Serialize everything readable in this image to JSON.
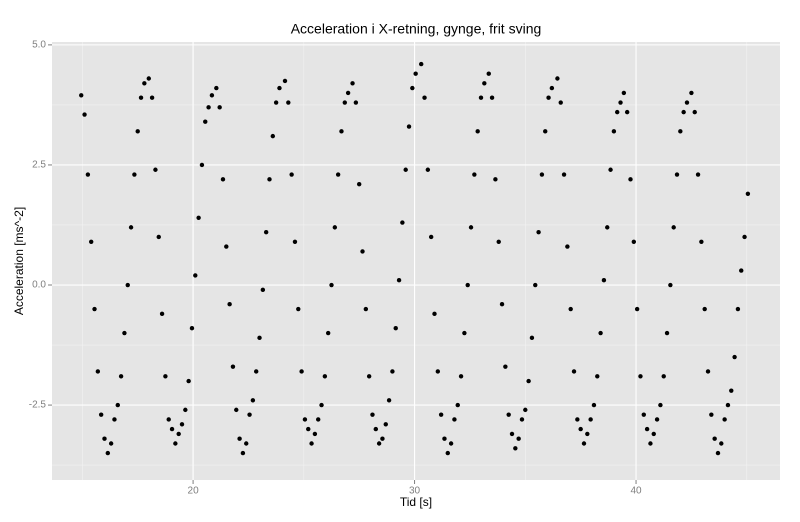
{
  "chart_data": {
    "type": "scatter",
    "title": "Acceleration i X-retning, gynge, frit sving",
    "x_label": "Tid [s]",
    "y_label": "Acceleration [ms^-2]",
    "color": "#000000",
    "grid": true,
    "xlim": [
      13.63,
      46.5
    ],
    "ylim": [
      -4.06,
      5.06
    ],
    "xticks": [
      20,
      30,
      40
    ],
    "yticks": [
      -2.5,
      {
        "value": 0,
        "label": "0.0"
      },
      2.5,
      {
        "value": 5,
        "label": "5.0"
      }
    ],
    "minor_xticks": [
      15,
      25,
      35,
      45
    ],
    "minor_yticks": [
      -3.75,
      -1.25,
      1.25,
      3.75
    ],
    "x": [
      14.95,
      15.1,
      15.25,
      15.4,
      15.55,
      15.7,
      15.85,
      16.0,
      16.15,
      16.3,
      16.45,
      16.6,
      16.75,
      16.9,
      17.05,
      17.2,
      17.35,
      17.5,
      17.65,
      17.8,
      18.0,
      18.15,
      18.3,
      18.45,
      18.6,
      18.75,
      18.9,
      19.05,
      19.2,
      19.35,
      19.5,
      19.65,
      19.8,
      19.95,
      20.1,
      20.25,
      20.4,
      20.55,
      20.7,
      20.85,
      21.05,
      21.2,
      21.35,
      21.5,
      21.65,
      21.8,
      21.95,
      22.1,
      22.25,
      22.4,
      22.55,
      22.7,
      22.85,
      23.0,
      23.15,
      23.3,
      23.45,
      23.6,
      23.75,
      23.9,
      24.15,
      24.3,
      24.45,
      24.6,
      24.75,
      24.9,
      25.05,
      25.2,
      25.35,
      25.5,
      25.65,
      25.8,
      25.95,
      26.1,
      26.25,
      26.4,
      26.55,
      26.7,
      26.85,
      27.0,
      27.2,
      27.35,
      27.5,
      27.65,
      27.8,
      27.95,
      28.1,
      28.25,
      28.4,
      28.55,
      28.7,
      28.85,
      29.0,
      29.15,
      29.3,
      29.45,
      29.6,
      29.75,
      29.9,
      30.05,
      30.3,
      30.45,
      30.6,
      30.75,
      30.9,
      31.05,
      31.2,
      31.35,
      31.5,
      31.65,
      31.8,
      31.95,
      32.1,
      32.25,
      32.4,
      32.55,
      32.7,
      32.85,
      33.0,
      33.15,
      33.35,
      33.5,
      33.65,
      33.8,
      33.95,
      34.1,
      34.25,
      34.4,
      34.55,
      34.7,
      34.85,
      35.0,
      35.15,
      35.3,
      35.45,
      35.6,
      35.75,
      35.9,
      36.05,
      36.2,
      36.45,
      36.6,
      36.75,
      36.9,
      37.05,
      37.2,
      37.35,
      37.5,
      37.65,
      37.8,
      37.95,
      38.1,
      38.25,
      38.4,
      38.55,
      38.7,
      38.85,
      39.0,
      39.15,
      39.3,
      39.45,
      39.6,
      39.75,
      39.9,
      40.05,
      40.2,
      40.35,
      40.5,
      40.65,
      40.8,
      40.95,
      41.1,
      41.25,
      41.4,
      41.55,
      41.7,
      41.85,
      42.0,
      42.15,
      42.3,
      42.5,
      42.65,
      42.8,
      42.95,
      43.1,
      43.25,
      43.4,
      43.55,
      43.7,
      43.85,
      44.0,
      44.15,
      44.3,
      44.45,
      44.6,
      44.75,
      44.9,
      45.05
    ],
    "y": [
      3.95,
      3.55,
      2.3,
      0.9,
      -0.5,
      -1.8,
      -2.7,
      -3.2,
      -3.5,
      -3.3,
      -2.8,
      -2.5,
      -1.9,
      -1.0,
      0.0,
      1.2,
      2.3,
      3.2,
      3.9,
      4.2,
      4.3,
      3.9,
      2.4,
      1.0,
      -0.6,
      -1.9,
      -2.8,
      -3.0,
      -3.3,
      -3.1,
      -2.9,
      -2.6,
      -2.0,
      -0.9,
      0.2,
      1.4,
      2.5,
      3.4,
      3.7,
      3.95,
      4.1,
      3.7,
      2.2,
      0.8,
      -0.4,
      -1.7,
      -2.6,
      -3.2,
      -3.5,
      -3.3,
      -2.7,
      -2.4,
      -1.8,
      -1.1,
      -0.1,
      1.1,
      2.2,
      3.1,
      3.8,
      4.1,
      4.25,
      3.8,
      2.3,
      0.9,
      -0.5,
      -1.8,
      -2.8,
      -3.0,
      -3.3,
      -3.1,
      -2.8,
      -2.5,
      -1.9,
      -1.0,
      0.0,
      1.2,
      2.3,
      3.2,
      3.8,
      4.0,
      4.2,
      3.8,
      2.1,
      0.7,
      -0.5,
      -1.9,
      -2.7,
      -3.0,
      -3.3,
      -3.2,
      -2.9,
      -2.4,
      -1.8,
      -0.9,
      0.1,
      1.3,
      2.4,
      3.3,
      4.1,
      4.4,
      4.6,
      3.9,
      2.4,
      1.0,
      -0.6,
      -1.8,
      -2.7,
      -3.2,
      -3.5,
      -3.3,
      -2.8,
      -2.5,
      -1.9,
      -1.0,
      0.0,
      1.2,
      2.3,
      3.2,
      3.9,
      4.2,
      4.4,
      3.9,
      2.2,
      0.9,
      -0.4,
      -1.7,
      -2.7,
      -3.1,
      -3.4,
      -3.2,
      -2.8,
      -2.6,
      -2.0,
      -1.1,
      0.0,
      1.1,
      2.3,
      3.2,
      3.9,
      4.1,
      4.3,
      3.8,
      2.3,
      0.8,
      -0.5,
      -1.8,
      -2.8,
      -3.0,
      -3.3,
      -3.1,
      -2.8,
      -2.5,
      -1.9,
      -1.0,
      0.1,
      1.2,
      2.4,
      3.2,
      3.6,
      3.8,
      4.0,
      3.6,
      2.2,
      0.9,
      -0.5,
      -1.9,
      -2.7,
      -3.0,
      -3.3,
      -3.1,
      -2.8,
      -2.5,
      -1.9,
      -1.0,
      0.0,
      1.2,
      2.3,
      3.2,
      3.6,
      3.8,
      4.0,
      3.6,
      2.3,
      0.9,
      -0.5,
      -1.8,
      -2.7,
      -3.2,
      -3.5,
      -3.3,
      -2.8,
      -2.5,
      -2.2,
      -1.5,
      -0.5,
      0.3,
      1.0,
      1.9
    ]
  }
}
